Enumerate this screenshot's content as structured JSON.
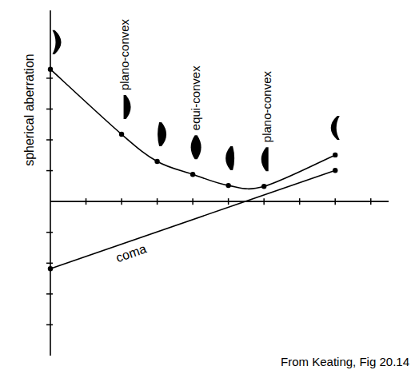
{
  "chart_data": {
    "type": "line",
    "series": [
      {
        "name": "spherical aberration",
        "color": "#000000",
        "marker": "circle",
        "line_style": "solid",
        "x": [
          0,
          2,
          3,
          4,
          5,
          6,
          8
        ],
        "values": [
          4.29,
          2.18,
          1.3,
          0.88,
          0.52,
          0.49,
          1.51
        ]
      },
      {
        "name": "coma",
        "color": "#000000",
        "marker": "circle",
        "line_style": "solid",
        "x": [
          0,
          8
        ],
        "values": [
          -2.18,
          1.01
        ]
      }
    ],
    "xlim": [
      0,
      9.5
    ],
    "ylim": [
      -5,
      6.2
    ],
    "xticks": [
      1,
      2,
      3,
      4,
      5,
      6,
      7,
      8,
      9
    ],
    "yticks": [
      -4,
      -3,
      -2,
      -1,
      1,
      2,
      3,
      4
    ],
    "tick_labels": false,
    "grid": false,
    "annotations": [
      {
        "text": "plano-convex",
        "x": 2
      },
      {
        "text": "equi-convex",
        "x": 4
      },
      {
        "text": "plano-convex",
        "x": 6
      }
    ],
    "source": "From Keating, Fig 20.14"
  }
}
